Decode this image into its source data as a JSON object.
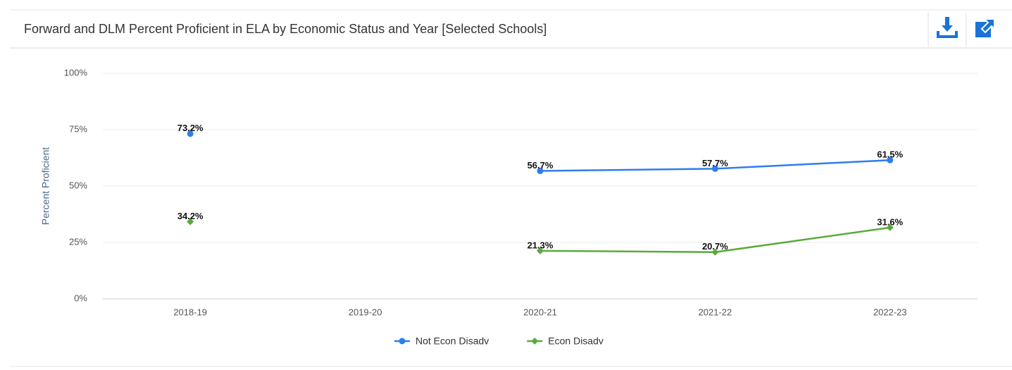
{
  "chart_data": {
    "type": "line",
    "title": "Forward and DLM Percent Proficient in ELA by Economic Status and Year [Selected Schools]",
    "y_label": "Percent Proficient",
    "categories": [
      "2018-19",
      "2019-20",
      "2020-21",
      "2021-22",
      "2022-23"
    ],
    "series": [
      {
        "name": "Not Econ Disadv",
        "color": "#2f7ded",
        "marker": "circle",
        "values": [
          73.2,
          null,
          56.7,
          57.7,
          61.5
        ],
        "value_labels": [
          "73.2%",
          null,
          "56.7%",
          "57.7%",
          "61.5%"
        ]
      },
      {
        "name": "Econ Disadv",
        "color": "#5aaa3c",
        "marker": "diamond",
        "values": [
          34.2,
          null,
          21.3,
          20.7,
          31.6
        ],
        "value_labels": [
          "34.2%",
          null,
          "21.3%",
          "20.7%",
          "31.6%"
        ]
      }
    ],
    "ylim": [
      0,
      100
    ],
    "yticks": [
      {
        "value": 0,
        "label": "0%"
      },
      {
        "value": 25,
        "label": "25%"
      },
      {
        "value": 50,
        "label": "50%"
      },
      {
        "value": 75,
        "label": "75%"
      },
      {
        "value": 100,
        "label": "100%"
      }
    ],
    "grid": true,
    "legend": "bottom"
  }
}
